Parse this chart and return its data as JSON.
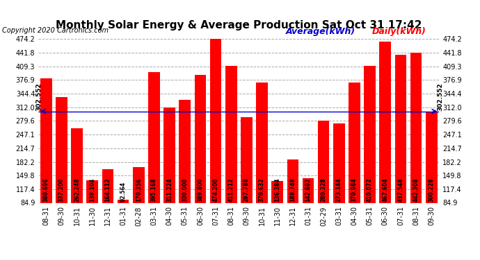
{
  "title": "Monthly Solar Energy & Average Production Sat Oct 31 17:42",
  "copyright": "Copyright 2020 Cartronics.com",
  "legend_avg": "Average(kWh)",
  "legend_daily": "Daily(kWh)",
  "average_value": 302.552,
  "categories": [
    "08-31",
    "09-30",
    "10-31",
    "11-30",
    "12-31",
    "01-31",
    "02-28",
    "03-31",
    "04-30",
    "05-31",
    "06-30",
    "07-31",
    "08-31",
    "09-30",
    "10-31",
    "11-30",
    "12-31",
    "01-31",
    "02-29",
    "03-31",
    "04-30",
    "05-31",
    "06-30",
    "07-31",
    "08-31",
    "09-30"
  ],
  "values": [
    380.696,
    337.2,
    262.248,
    139.104,
    164.112,
    92.564,
    170.356,
    395.168,
    311.224,
    330.0,
    389.8,
    474.2,
    411.212,
    287.788,
    370.632,
    136.384,
    188.748,
    142.692,
    280.328,
    273.144,
    370.984,
    410.072,
    467.604,
    437.548,
    442.308,
    300.228
  ],
  "bar_color": "#ff0000",
  "avg_line_color": "#0000cc",
  "background_color": "#ffffff",
  "grid_color": "#aaaaaa",
  "title_color": "#000000",
  "ylim_min": 84.9,
  "ylim_max": 490.0,
  "yticks": [
    84.9,
    117.4,
    149.8,
    182.2,
    214.7,
    247.1,
    279.6,
    312.0,
    344.4,
    376.9,
    409.3,
    441.8,
    474.2
  ],
  "title_fontsize": 11,
  "copyright_fontsize": 7,
  "bar_label_fontsize": 5.5,
  "tick_fontsize": 7,
  "legend_fontsize": 9
}
